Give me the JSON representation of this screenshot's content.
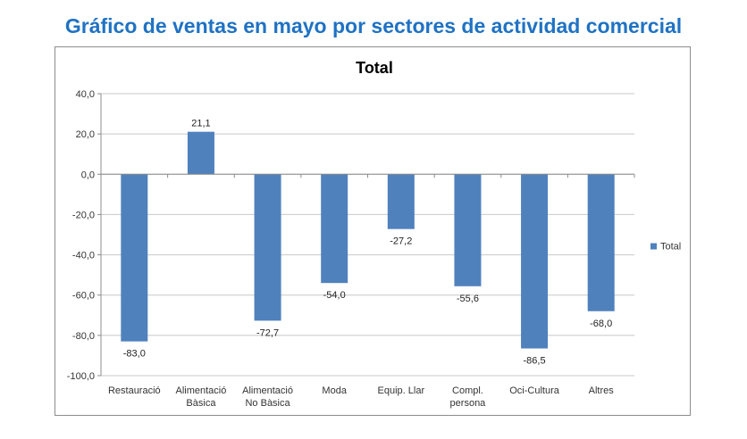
{
  "page": {
    "title": "Gráfico de ventas en mayo por sectores de actividad comercial"
  },
  "colors": {
    "bar": "#4f81bd",
    "title": "#1f72c4",
    "grid": "#c8c8c8",
    "axis": "#8c8c8c"
  },
  "chart_data": {
    "type": "bar",
    "title": "Total",
    "xlabel": "",
    "ylabel": "",
    "categories": [
      [
        "Restauració"
      ],
      [
        "Alimentació",
        "Bàsica"
      ],
      [
        "Alimentació",
        "No Bàsica"
      ],
      [
        "Moda"
      ],
      [
        "Equip. Llar"
      ],
      [
        "Compl.",
        "persona"
      ],
      [
        "Oci-Cultura"
      ],
      [
        "Altres"
      ]
    ],
    "series": [
      {
        "name": "Total",
        "values": [
          -83.0,
          21.1,
          -72.7,
          -54.0,
          -27.2,
          -55.6,
          -86.5,
          -68.0
        ],
        "labels": [
          "-83,0",
          "21,1",
          "-72,7",
          "-54,0",
          "-27,2",
          "-55,6",
          "-86,5",
          "-68,0"
        ]
      }
    ],
    "ylim": [
      -100,
      40
    ],
    "yticks": [
      40,
      20,
      0,
      -20,
      -40,
      -60,
      -80,
      -100
    ],
    "ytick_labels": [
      "40,0",
      "20,0",
      "0,0",
      "-20,0",
      "-40,0",
      "-60,0",
      "-80,0",
      "-100,0"
    ],
    "grid": true,
    "legend_position": "right"
  }
}
